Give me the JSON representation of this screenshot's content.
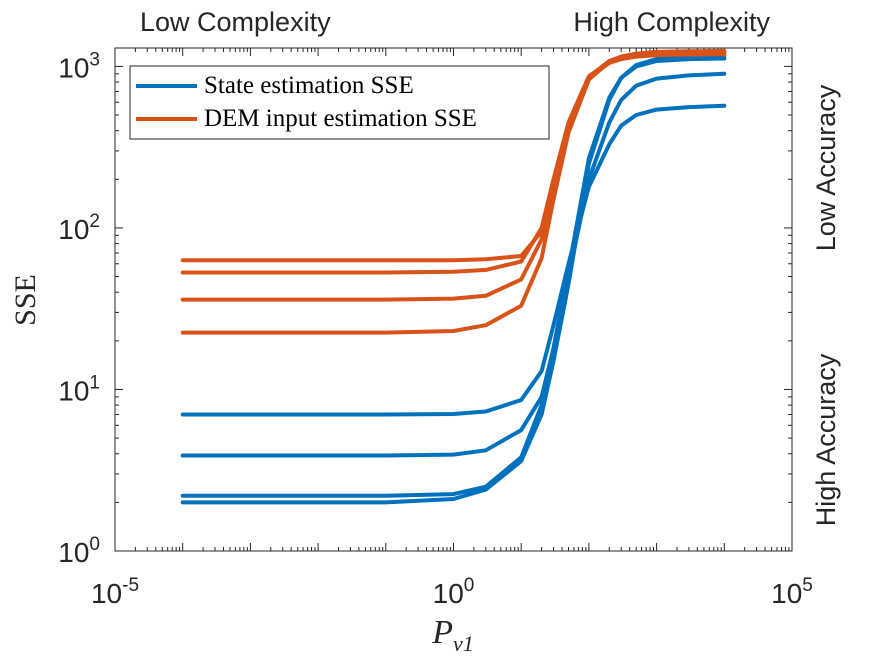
{
  "chart_data": {
    "type": "line",
    "x_scale": "log",
    "y_scale": "log",
    "xlim": [
      1e-05,
      100000
    ],
    "ylim": [
      1,
      1300
    ],
    "xlabel": "P",
    "xlabel_subscript": "v1",
    "ylabel": "SSE",
    "x_ticks": [
      {
        "value": 1e-05,
        "base": "10",
        "exp": "-5"
      },
      {
        "value": 1,
        "base": "10",
        "exp": "0"
      },
      {
        "value": 100000,
        "base": "10",
        "exp": "5"
      }
    ],
    "y_ticks": [
      {
        "value": 1,
        "base": "10",
        "exp": "0"
      },
      {
        "value": 10,
        "base": "10",
        "exp": "1"
      },
      {
        "value": 100,
        "base": "10",
        "exp": "2"
      },
      {
        "value": 1000,
        "base": "10",
        "exp": "3"
      }
    ],
    "annotations": {
      "top_left": "Low Complexity",
      "top_right": "High Complexity",
      "right_upper": "Low Accuracy",
      "right_lower": "High Accuracy"
    },
    "legend": {
      "placement": "top-left",
      "entries": [
        {
          "label": "State estimation SSE",
          "color": "#0072BD"
        },
        {
          "label": "DEM input estimation SSE",
          "color": "#D95319"
        }
      ]
    },
    "x": [
      0.0001,
      0.001,
      0.01,
      0.1,
      1,
      3,
      10,
      20,
      30,
      50,
      100,
      200,
      300,
      500,
      1000,
      3000,
      10000
    ],
    "series": [
      {
        "legend_index": 0,
        "color": "#0072BD",
        "values": [
          7.0,
          7.0,
          7.0,
          7.0,
          7.05,
          7.3,
          8.6,
          13,
          25,
          60,
          180,
          330,
          430,
          500,
          540,
          560,
          570
        ]
      },
      {
        "legend_index": 0,
        "color": "#0072BD",
        "values": [
          3.9,
          3.9,
          3.9,
          3.9,
          3.95,
          4.2,
          5.6,
          9,
          18,
          50,
          200,
          450,
          620,
          760,
          840,
          880,
          900
        ]
      },
      {
        "legend_index": 0,
        "color": "#0072BD",
        "values": [
          2.2,
          2.2,
          2.2,
          2.2,
          2.25,
          2.5,
          3.8,
          8,
          18,
          55,
          270,
          640,
          850,
          1000,
          1080,
          1110,
          1120
        ]
      },
      {
        "legend_index": 0,
        "color": "#0072BD",
        "values": [
          2.0,
          2.0,
          2.0,
          2.0,
          2.1,
          2.4,
          3.6,
          7,
          15,
          45,
          250,
          620,
          850,
          1020,
          1110,
          1150,
          1160
        ]
      },
      {
        "legend_index": 1,
        "color": "#D95319",
        "values": [
          63,
          63,
          63,
          63,
          63,
          64,
          67,
          95,
          190,
          430,
          850,
          1050,
          1110,
          1150,
          1175,
          1185,
          1190
        ]
      },
      {
        "legend_index": 1,
        "color": "#D95319",
        "values": [
          53,
          53,
          53,
          53,
          53.5,
          55,
          62,
          100,
          200,
          450,
          870,
          1070,
          1130,
          1170,
          1195,
          1205,
          1210
        ]
      },
      {
        "legend_index": 1,
        "color": "#D95319",
        "values": [
          36,
          36,
          36,
          36,
          36.5,
          38,
          48,
          85,
          180,
          430,
          860,
          1080,
          1150,
          1190,
          1215,
          1225,
          1230
        ]
      },
      {
        "legend_index": 1,
        "color": "#D95319",
        "values": [
          22.5,
          22.5,
          22.5,
          22.5,
          23,
          25,
          33,
          65,
          150,
          390,
          830,
          1070,
          1150,
          1200,
          1230,
          1240,
          1245
        ]
      }
    ]
  }
}
